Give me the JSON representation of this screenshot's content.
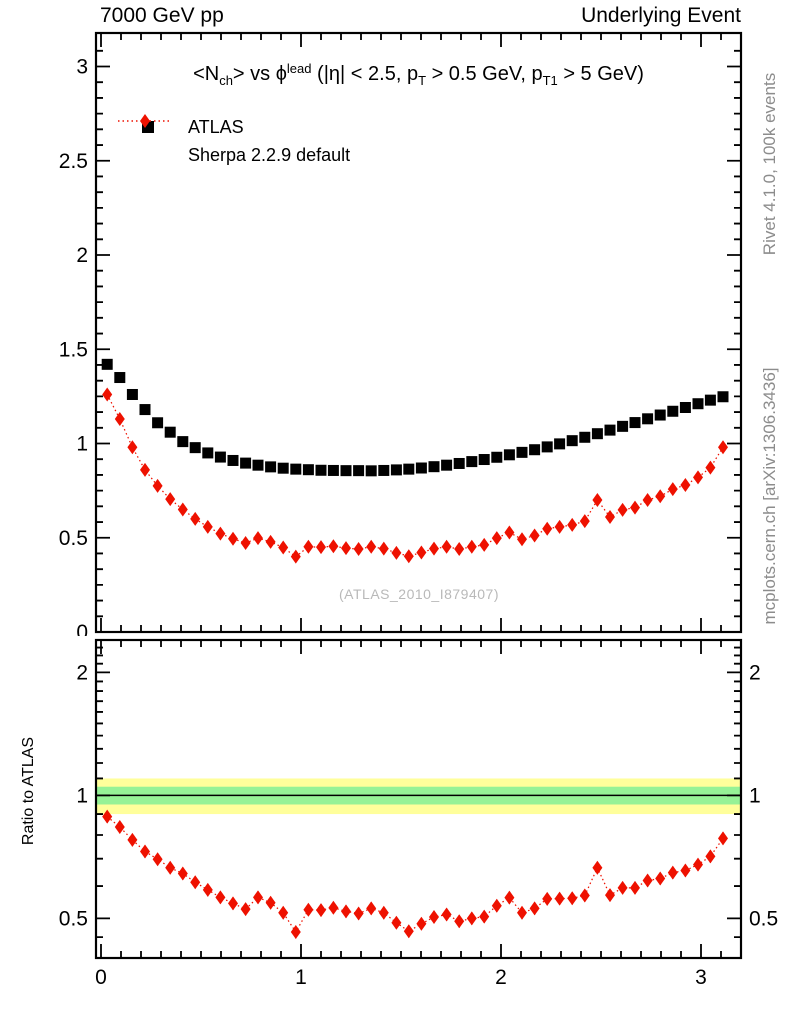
{
  "header": {
    "left_title": "7000 GeV pp",
    "right_title": "Underlying Event"
  },
  "plot_title": {
    "text": "<Nch> vs ϕ^lead (|η| < 2.5, pT > 0.5 GeV, pT1 > 5 GeV)",
    "segments": [
      {
        "t": "<N"
      },
      {
        "t": "ch",
        "v": "sub"
      },
      {
        "t": "> vs "
      },
      {
        "t": "ϕ"
      },
      {
        "t": "lead",
        "v": "sup"
      },
      {
        "t": " (|η| < 2.5, p"
      },
      {
        "t": "T",
        "v": "sub"
      },
      {
        "t": " > 0.5 GeV, p"
      },
      {
        "t": "T1",
        "v": "sub"
      },
      {
        "t": " > 5 GeV)"
      }
    ]
  },
  "legend": {
    "items": [
      {
        "label": "ATLAS",
        "marker": "black-square"
      },
      {
        "label": "Sherpa 2.2.9 default",
        "marker": "red-diamond-dotted-line"
      }
    ]
  },
  "watermark": "(ATLAS_2010_I879407)",
  "side_text": {
    "top": "Rivet 4.1.0,  100k events",
    "bottom": "mcplots.cern.ch [arXiv:1306.3436]"
  },
  "ratio_axis_title": "Ratio to ATLAS",
  "colors": {
    "atlas": "#000000",
    "sherpa": "#ee1100",
    "band_outer": "#ffff9b",
    "band_inner": "#96f296",
    "gray_text": "#8c8c8c",
    "watermark": "#b9b9b9"
  },
  "chart_data": [
    {
      "type": "scatter",
      "panel": "main",
      "title": "<Nch> vs phi^lead (|eta| < 2.5, pT > 0.5 GeV, pT1 > 5 GeV)",
      "xlabel": "",
      "ylabel": "",
      "xlim": [
        0,
        3.2
      ],
      "ylim": [
        0,
        3.18
      ],
      "xticks": [
        0,
        1,
        2,
        3
      ],
      "yticks": [
        0,
        0.5,
        1,
        1.5,
        2,
        2.5,
        3
      ],
      "grid": false,
      "legend_position": "top-left",
      "x": [
        0.031,
        0.094,
        0.157,
        0.22,
        0.283,
        0.346,
        0.409,
        0.471,
        0.534,
        0.597,
        0.66,
        0.723,
        0.785,
        0.848,
        0.911,
        0.974,
        1.037,
        1.1,
        1.162,
        1.225,
        1.288,
        1.351,
        1.414,
        1.477,
        1.539,
        1.602,
        1.665,
        1.728,
        1.791,
        1.854,
        1.916,
        1.979,
        2.042,
        2.105,
        2.168,
        2.231,
        2.293,
        2.356,
        2.419,
        2.482,
        2.545,
        2.608,
        2.67,
        2.733,
        2.796,
        2.859,
        2.922,
        2.985,
        3.047,
        3.11
      ],
      "series": [
        {
          "name": "ATLAS",
          "marker": "square",
          "color": "#000000",
          "line": "none",
          "values": [
            1.42,
            1.35,
            1.26,
            1.18,
            1.11,
            1.06,
            1.01,
            0.978,
            0.95,
            0.928,
            0.91,
            0.896,
            0.885,
            0.876,
            0.869,
            0.864,
            0.861,
            0.858,
            0.857,
            0.856,
            0.856,
            0.855,
            0.857,
            0.86,
            0.864,
            0.87,
            0.877,
            0.885,
            0.894,
            0.904,
            0.915,
            0.927,
            0.94,
            0.953,
            0.967,
            0.982,
            0.998,
            1.015,
            1.033,
            1.052,
            1.071,
            1.091,
            1.111,
            1.131,
            1.151,
            1.171,
            1.191,
            1.211,
            1.23,
            1.248
          ]
        },
        {
          "name": "Sherpa 2.2.9 default",
          "marker": "diamond",
          "color": "#ee1100",
          "line": "dotted",
          "yerr": 0.025,
          "values": [
            1.26,
            1.13,
            0.98,
            0.86,
            0.775,
            0.705,
            0.65,
            0.6,
            0.558,
            0.522,
            0.495,
            0.472,
            0.498,
            0.478,
            0.448,
            0.4,
            0.452,
            0.45,
            0.455,
            0.445,
            0.44,
            0.452,
            0.442,
            0.42,
            0.402,
            0.422,
            0.442,
            0.452,
            0.44,
            0.452,
            0.462,
            0.498,
            0.528,
            0.492,
            0.512,
            0.548,
            0.558,
            0.568,
            0.588,
            0.7,
            0.61,
            0.648,
            0.66,
            0.7,
            0.72,
            0.758,
            0.78,
            0.82,
            0.872,
            0.98
          ]
        }
      ]
    },
    {
      "type": "scatter",
      "panel": "ratio",
      "title": "",
      "xlabel": "",
      "ylabel": "Ratio to ATLAS",
      "yscale": "log",
      "xlim": [
        0,
        3.2
      ],
      "ylim": [
        0.4,
        2.4
      ],
      "xticks": [
        0,
        1,
        2,
        3
      ],
      "yticks": [
        0.5,
        1,
        2
      ],
      "grid": false,
      "reference_line": 1,
      "bands": [
        {
          "lo": 0.9,
          "hi": 1.1,
          "color": "#ffff9b",
          "meaning": "±10%"
        },
        {
          "lo": 0.95,
          "hi": 1.05,
          "color": "#96f296",
          "meaning": "±5%"
        }
      ],
      "x": [
        0.031,
        0.094,
        0.157,
        0.22,
        0.283,
        0.346,
        0.409,
        0.471,
        0.534,
        0.597,
        0.66,
        0.723,
        0.785,
        0.848,
        0.911,
        0.974,
        1.037,
        1.1,
        1.162,
        1.225,
        1.288,
        1.351,
        1.414,
        1.477,
        1.539,
        1.602,
        1.665,
        1.728,
        1.791,
        1.854,
        1.916,
        1.979,
        2.042,
        2.105,
        2.168,
        2.231,
        2.293,
        2.356,
        2.419,
        2.482,
        2.545,
        2.608,
        2.67,
        2.733,
        2.796,
        2.859,
        2.922,
        2.985,
        3.047,
        3.11
      ],
      "series": [
        {
          "name": "Sherpa 2.2.9 default / ATLAS",
          "marker": "diamond",
          "color": "#ee1100",
          "line": "dotted",
          "yerr_rel": 0.035,
          "values": [
            0.887,
            0.837,
            0.778,
            0.729,
            0.698,
            0.665,
            0.644,
            0.613,
            0.587,
            0.563,
            0.544,
            0.527,
            0.563,
            0.546,
            0.516,
            0.463,
            0.525,
            0.524,
            0.531,
            0.52,
            0.514,
            0.529,
            0.516,
            0.488,
            0.465,
            0.485,
            0.504,
            0.511,
            0.492,
            0.5,
            0.505,
            0.537,
            0.562,
            0.516,
            0.529,
            0.558,
            0.559,
            0.56,
            0.569,
            0.665,
            0.57,
            0.594,
            0.594,
            0.619,
            0.626,
            0.647,
            0.655,
            0.677,
            0.709,
            0.785
          ]
        }
      ]
    }
  ]
}
